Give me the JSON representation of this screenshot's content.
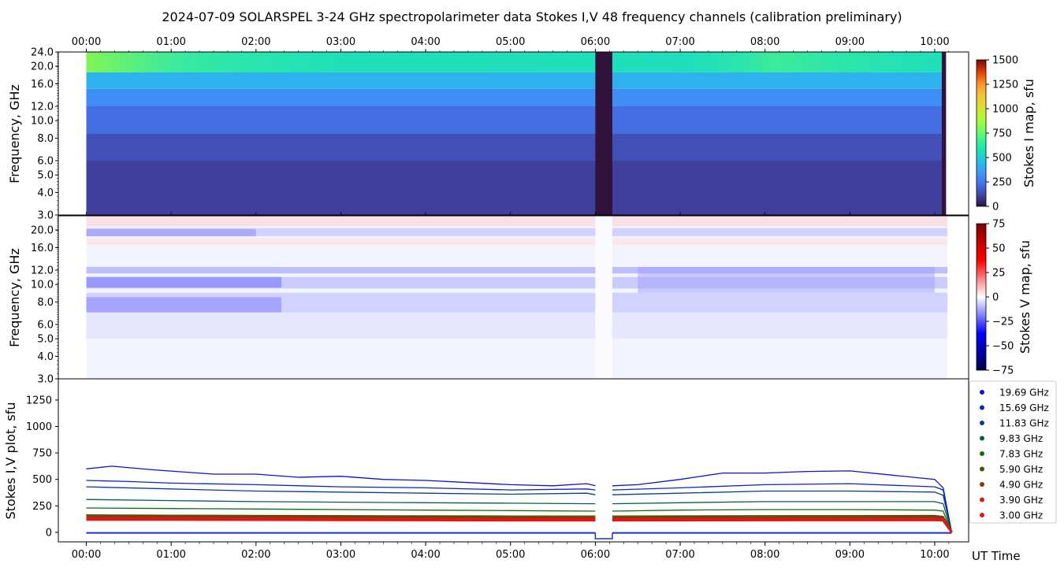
{
  "title": "2024-07-09  SOLARSPEL  3-24 GHz spectropolarimeter data   Stokes I,V   48 frequency channels   (calibration preliminary)",
  "time_ticks": [
    "00:00",
    "01:00",
    "02:00",
    "03:00",
    "04:00",
    "05:00",
    "06:00",
    "07:00",
    "08:00",
    "09:00",
    "10:00"
  ],
  "x_label": "UT Time",
  "colors": {
    "turbo_low": "#30123b",
    "turbo_mid": "#3b8cf0",
    "turbo_green": "#8cf94a",
    "v_blue": "#0000ff",
    "v_red": "#ff0000",
    "frame": "#000000"
  },
  "chart_data": [
    {
      "type": "heatmap",
      "panel": "stokes-i",
      "ylabel": "Frequency, GHz",
      "y_scale": "log",
      "ylim": [
        3.0,
        24.0
      ],
      "y_ticks": [
        "24.0",
        "20.0",
        "16.0",
        "12.0",
        "10.0",
        "8.0",
        "6.0",
        "5.0",
        "4.0",
        "3.0"
      ],
      "colorbar_label": "Stokes I map, sfu",
      "colorbar_range": [
        0,
        1500
      ],
      "colorbar_ticks": [
        "1500",
        "1250",
        "1000",
        "750",
        "500",
        "250",
        "0"
      ],
      "colormap": "turbo",
      "data_start": "00:00",
      "data_end": "10:08",
      "gaps": [
        [
          "06:00",
          "06:12"
        ],
        [
          "10:05",
          "10:08"
        ]
      ],
      "bands": [
        {
          "freq_range": [
            3.0,
            6.0
          ],
          "level_sfu": 110
        },
        {
          "freq_range": [
            6.0,
            8.5
          ],
          "level_sfu": 150
        },
        {
          "freq_range": [
            8.5,
            12.0
          ],
          "level_sfu": 230
        },
        {
          "freq_range": [
            12.0,
            15.0
          ],
          "level_sfu": 320
        },
        {
          "freq_range": [
            15.0,
            18.5
          ],
          "level_sfu": 420
        },
        {
          "freq_range": [
            18.5,
            24.0
          ],
          "level_sfu": 560
        }
      ]
    },
    {
      "type": "heatmap",
      "panel": "stokes-v",
      "ylabel": "Frequency, GHz",
      "y_scale": "log",
      "ylim": [
        3.0,
        24.0
      ],
      "y_ticks": [
        "20.0",
        "16.0",
        "12.0",
        "10.0",
        "8.0",
        "6.0",
        "5.0",
        "4.0",
        "3.0"
      ],
      "colorbar_label": "Stokes V map, sfu",
      "colorbar_range": [
        -75,
        75
      ],
      "colorbar_ticks": [
        "75",
        "50",
        "25",
        "0",
        "−25",
        "−50",
        "−75"
      ],
      "colormap": "seismic",
      "bands": [
        {
          "freq_range": [
            21.0,
            24.0
          ],
          "level_sfu": 8
        },
        {
          "freq_range": [
            18.5,
            20.5
          ],
          "level_sfu": -12
        },
        {
          "freq_range": [
            16.5,
            18.0
          ],
          "level_sfu": 6
        },
        {
          "freq_range": [
            11.5,
            12.5
          ],
          "level_sfu": -18
        },
        {
          "freq_range": [
            9.5,
            11.0
          ],
          "level_sfu": -14
        },
        {
          "freq_range": [
            7.0,
            9.0
          ],
          "level_sfu": -12
        },
        {
          "freq_range": [
            5.0,
            7.0
          ],
          "level_sfu": -6
        }
      ]
    },
    {
      "type": "line",
      "panel": "stokes-iv-plot",
      "ylabel": "Stokes I,V plot, sfu",
      "ylim": [
        -90,
        1450
      ],
      "y_ticks": [
        0,
        250,
        500,
        750,
        1000,
        1250
      ],
      "x_range_hours": [
        -0.33,
        10.4
      ],
      "legend_position": "right",
      "series": [
        {
          "name": "19.69 GHz",
          "color": "#0a14d2",
          "x": [
            0,
            0.3,
            0.8,
            1.5,
            2.0,
            2.5,
            3.0,
            3.5,
            4.0,
            4.5,
            5.0,
            5.5,
            5.9,
            6.0
          ],
          "values": [
            600,
            625,
            590,
            550,
            550,
            520,
            530,
            500,
            490,
            470,
            450,
            440,
            460,
            440
          ]
        },
        {
          "name": "15.69 GHz",
          "color": "#0a28b4",
          "x": [
            0,
            0.5,
            1.0,
            2.0,
            3.0,
            4.0,
            5.0,
            5.9,
            6.0
          ],
          "values": [
            490,
            480,
            465,
            450,
            430,
            420,
            400,
            410,
            400
          ]
        },
        {
          "name": "11.83 GHz",
          "color": "#0a3c8c",
          "x": [
            0,
            1.0,
            2.0,
            3.0,
            4.0,
            5.0,
            5.9,
            6.0
          ],
          "values": [
            430,
            410,
            390,
            380,
            370,
            360,
            370,
            355
          ]
        },
        {
          "name": "9.83 GHz",
          "color": "#0a5a50",
          "x": [
            0,
            1.0,
            2.0,
            3.0,
            4.0,
            5.0,
            6.0
          ],
          "values": [
            310,
            300,
            290,
            285,
            280,
            275,
            270
          ]
        },
        {
          "name": "7.83 GHz",
          "color": "#0a6e14",
          "x": [
            0,
            1.0,
            2.0,
            3.0,
            4.0,
            5.0,
            6.0
          ],
          "values": [
            230,
            225,
            220,
            215,
            210,
            205,
            200
          ]
        },
        {
          "name": "5.90 GHz",
          "color": "#3c5a0a",
          "x": [
            0,
            1.0,
            2.0,
            3.0,
            4.0,
            5.0,
            6.0
          ],
          "values": [
            165,
            162,
            160,
            158,
            156,
            155,
            155
          ]
        },
        {
          "name": "4.90 GHz",
          "color": "#7a3c0a",
          "x": [
            0,
            1.0,
            2.0,
            3.0,
            4.0,
            5.0,
            6.0
          ],
          "values": [
            150,
            148,
            146,
            144,
            142,
            140,
            140
          ]
        },
        {
          "name": "3.90 GHz",
          "color": "#c8280a",
          "x": [
            0,
            1.0,
            2.0,
            3.0,
            4.0,
            5.0,
            6.0
          ],
          "values": [
            135,
            133,
            130,
            128,
            126,
            125,
            125
          ]
        },
        {
          "name": "3.00 GHz",
          "color": "#e61414",
          "x": [
            0,
            1.0,
            2.0,
            3.0,
            4.0,
            5.0,
            6.0
          ],
          "values": [
            120,
            120,
            118,
            116,
            115,
            114,
            114
          ]
        }
      ],
      "series_after_gap": [
        {
          "name": "19.69 GHz",
          "x": [
            6.2,
            6.5,
            7.0,
            7.5,
            8.0,
            8.5,
            9.0,
            9.5,
            10.0,
            10.1,
            10.2
          ],
          "values": [
            440,
            450,
            500,
            560,
            560,
            575,
            580,
            540,
            500,
            420,
            0
          ]
        },
        {
          "name": "15.69 GHz",
          "x": [
            6.2,
            7.0,
            8.0,
            9.0,
            10.0,
            10.1,
            10.2
          ],
          "values": [
            400,
            420,
            450,
            460,
            430,
            400,
            0
          ]
        },
        {
          "name": "11.83 GHz",
          "x": [
            6.2,
            7.0,
            8.0,
            9.0,
            10.0,
            10.1,
            10.2
          ],
          "values": [
            355,
            370,
            390,
            390,
            380,
            350,
            0
          ]
        },
        {
          "name": "9.83 GHz",
          "x": [
            6.2,
            7.0,
            8.0,
            9.0,
            10.0,
            10.1,
            10.2
          ],
          "values": [
            270,
            280,
            290,
            290,
            290,
            270,
            0
          ]
        },
        {
          "name": "7.83 GHz",
          "x": [
            6.2,
            7.0,
            8.0,
            9.0,
            10.0,
            10.1,
            10.2
          ],
          "values": [
            200,
            210,
            215,
            215,
            210,
            200,
            0
          ]
        },
        {
          "name": "5.90 GHz",
          "x": [
            6.2,
            10.0,
            10.1,
            10.2
          ],
          "values": [
            155,
            160,
            150,
            0
          ]
        },
        {
          "name": "4.90 GHz",
          "x": [
            6.2,
            10.0,
            10.1,
            10.2
          ],
          "values": [
            140,
            145,
            140,
            0
          ]
        },
        {
          "name": "3.90 GHz",
          "x": [
            6.2,
            10.0,
            10.1,
            10.2
          ],
          "values": [
            125,
            128,
            125,
            0
          ]
        },
        {
          "name": "3.00 GHz",
          "x": [
            6.2,
            10.0,
            10.1,
            10.2
          ],
          "values": [
            114,
            116,
            112,
            0
          ]
        }
      ],
      "stokes_v_level_sfu": -5,
      "gap_dip_sfu": -60
    }
  ]
}
